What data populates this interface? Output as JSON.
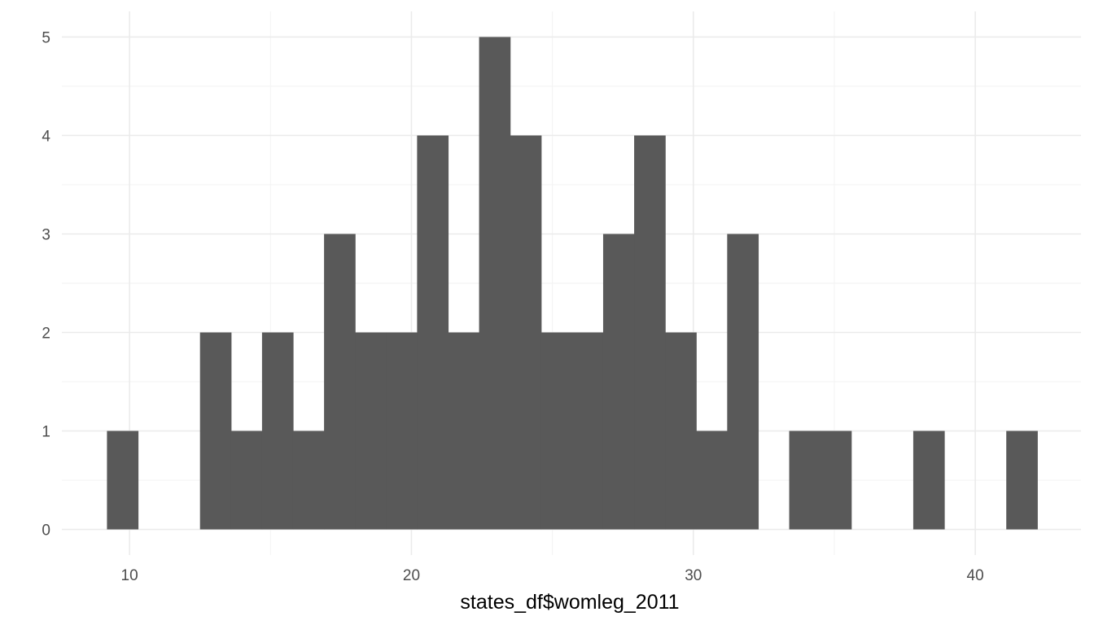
{
  "chart_data": {
    "type": "bar",
    "title": "",
    "xlabel": "states_df$womleg_2011",
    "ylabel": "",
    "bin_edges": [
      9.2,
      10.3,
      11.4,
      12.5,
      13.6,
      14.7,
      15.8,
      16.9,
      18.0,
      19.1,
      20.2,
      21.3,
      22.4,
      23.5,
      24.6,
      25.7,
      26.8,
      27.9,
      29.0,
      30.1,
      31.2,
      32.3,
      33.4,
      34.5,
      35.6,
      36.7,
      37.8,
      38.9,
      40.0,
      41.1,
      42.2
    ],
    "values": [
      1,
      0,
      0,
      2,
      1,
      2,
      1,
      3,
      2,
      2,
      4,
      2,
      5,
      4,
      2,
      2,
      3,
      4,
      2,
      1,
      3,
      0,
      1,
      1,
      0,
      0,
      1,
      0,
      0,
      1
    ],
    "xlim": [
      7.6,
      43.75
    ],
    "ylim": [
      -0.26,
      5.26
    ],
    "x_ticks": [
      10,
      20,
      30,
      40
    ],
    "x_minor_ticks": [
      15,
      25,
      35
    ],
    "y_ticks": [
      0,
      1,
      2,
      3,
      4,
      5
    ],
    "y_minor_ticks": [
      0.5,
      1.5,
      2.5,
      3.5,
      4.5
    ],
    "grid": true,
    "bar_color": "#595959",
    "grid_color": "#ebebeb",
    "background": "#ffffff"
  }
}
